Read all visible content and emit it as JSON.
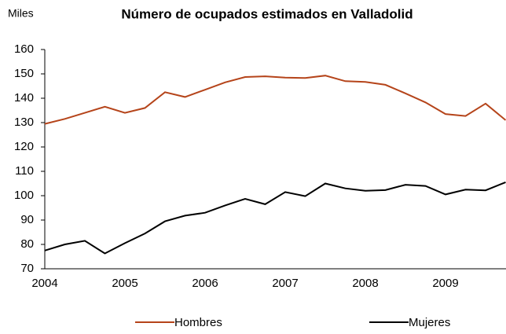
{
  "chart_data": {
    "type": "line",
    "title": "Número de ocupados estimados en  Valladolid",
    "y_label": "Miles",
    "categories": [
      "2004",
      null,
      null,
      null,
      "2005",
      null,
      null,
      null,
      "2006",
      null,
      null,
      null,
      "2007",
      null,
      null,
      null,
      "2008",
      null,
      null,
      null,
      "2009",
      null,
      null,
      null
    ],
    "series": [
      {
        "name": "Hombres",
        "color": "#b5441a",
        "values": [
          129.5,
          131.5,
          134,
          136.5,
          134,
          136,
          142.5,
          140.5,
          143.5,
          146.5,
          148.7,
          149,
          148.5,
          148.3,
          149.3,
          147,
          146.7,
          145.5,
          142,
          138.3,
          133.5,
          132.7,
          137.8,
          131
        ]
      },
      {
        "name": "Mujeres",
        "color": "#000000",
        "values": [
          77.5,
          80,
          81.5,
          76.3,
          80.5,
          84.5,
          89.5,
          91.8,
          93,
          96,
          98.7,
          96.5,
          101.5,
          99.8,
          105,
          103,
          102,
          102.3,
          104.5,
          104,
          100.5,
          102.5,
          102.2,
          105.5
        ]
      }
    ],
    "ylim": [
      70,
      160
    ],
    "yticks": [
      70,
      80,
      90,
      100,
      110,
      120,
      130,
      140,
      150,
      160
    ],
    "grid": false,
    "legend": "bottom"
  }
}
